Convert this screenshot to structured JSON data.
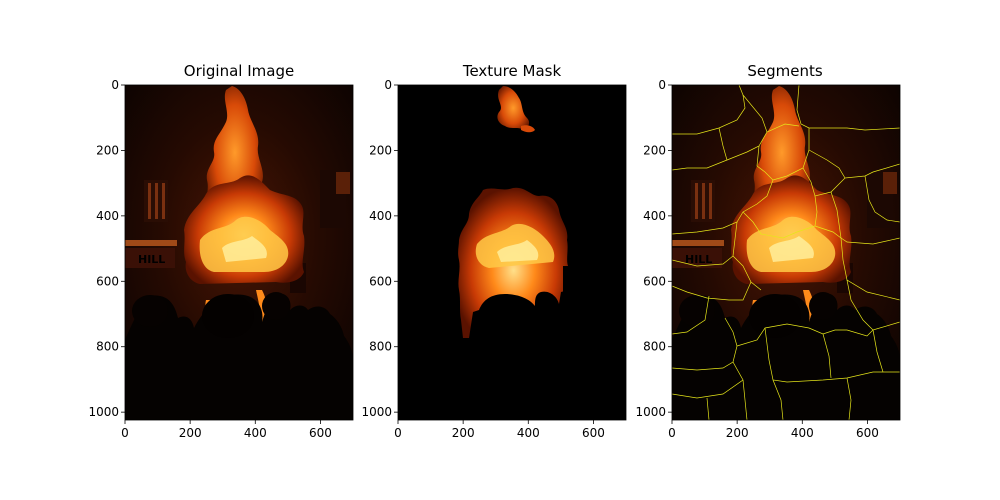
{
  "panels": [
    {
      "title": "Original Image",
      "x_ticks": [
        "0",
        "200",
        "400",
        "600"
      ],
      "y_ticks": [
        "0",
        "200",
        "400",
        "600",
        "800",
        "1000"
      ],
      "sign_text": "HILL"
    },
    {
      "title": "Texture Mask",
      "x_ticks": [
        "0",
        "200",
        "400",
        "600"
      ],
      "y_ticks": [
        "0",
        "200",
        "400",
        "600",
        "800",
        "1000"
      ]
    },
    {
      "title": "Segments",
      "x_ticks": [
        "0",
        "200",
        "400",
        "600"
      ],
      "y_ticks": [
        "0",
        "200",
        "400",
        "600",
        "800",
        "1000"
      ],
      "sign_text": "HILL"
    }
  ],
  "colors": {
    "boundary": "#e6e61a",
    "flame_core": "#ffd24a",
    "flame_mid": "#ff7a10",
    "flame_edge": "#b52a00",
    "background": "#000000"
  }
}
